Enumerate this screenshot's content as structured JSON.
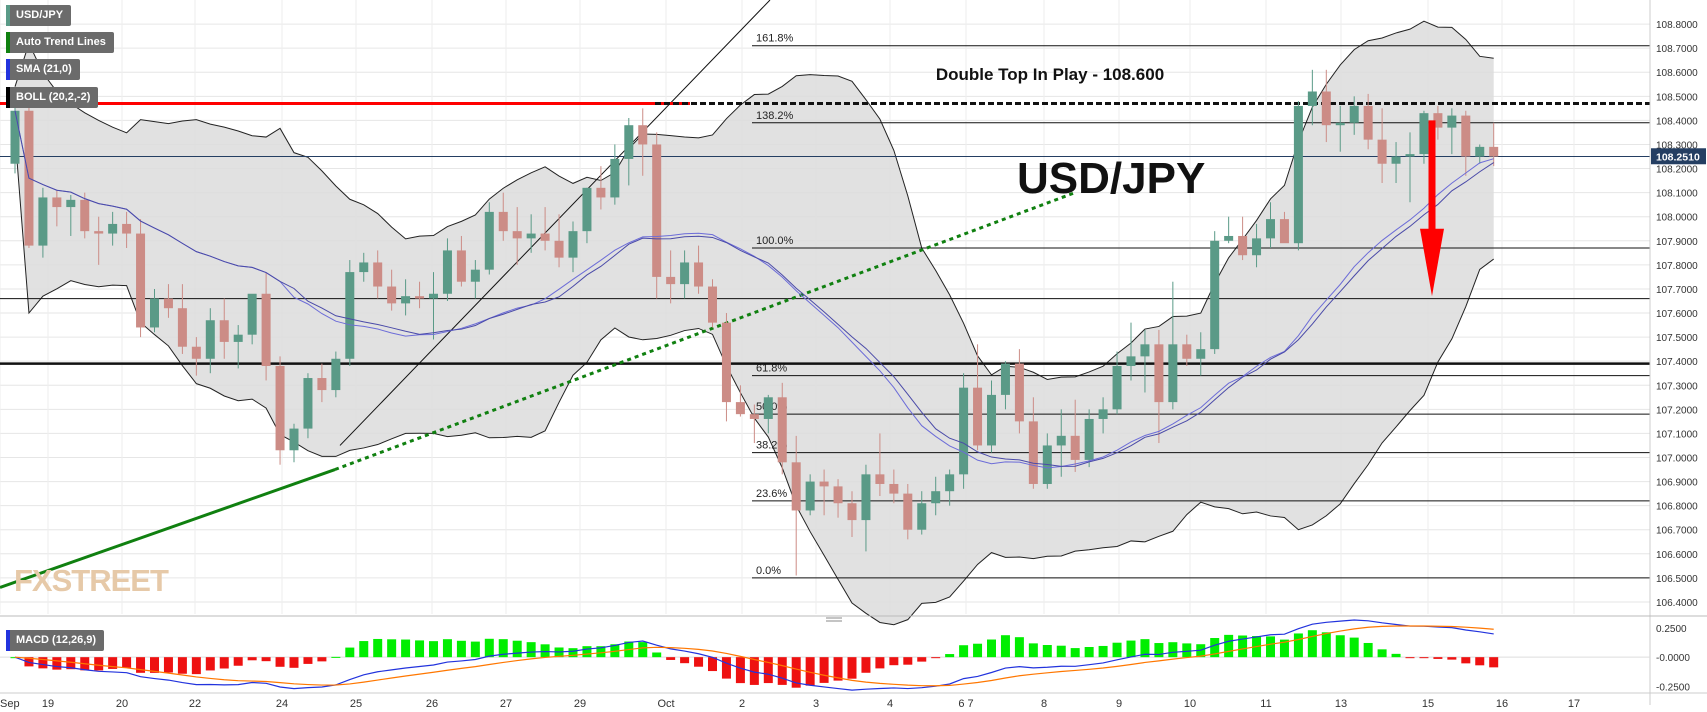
{
  "legend": {
    "symbol": "USD/JPY",
    "trend": "Auto Trend Lines",
    "sma": "SMA (21,0)",
    "boll": "BOLL (20,2,-2)",
    "macd": "MACD (12,26,9)"
  },
  "colors": {
    "up": "#5a9a87",
    "down": "#cc8c86",
    "resistance": "#ff0000",
    "trend_green": "#108010",
    "price_tag": "#243e62",
    "macd_pos": "#00ee00",
    "macd_neg": "#ee1111",
    "macd_line": "#2233dd",
    "signal_line": "#ff7700"
  },
  "watermark": "FXSTREET",
  "annotations": {
    "double_top": "Double Top In Play - 108.600",
    "pair_title": "USD/JPY"
  },
  "fib_labels": [
    "161.8%",
    "138.2%",
    "100.0%",
    "61.8%",
    "50.0%",
    "38.2%",
    "23.6%",
    "0.0%"
  ],
  "chart_data": {
    "type": "candlestick",
    "title": "USD/JPY",
    "ylim": [
      106.35,
      108.9
    ],
    "y_ticks": [
      "108.8000",
      "108.7000",
      "108.6000",
      "108.5000",
      "108.4000",
      "108.3000",
      "108.2000",
      "108.1000",
      "108.0000",
      "107.9000",
      "107.8000",
      "107.7000",
      "107.6000",
      "107.5000",
      "107.4000",
      "107.3000",
      "107.2000",
      "107.1000",
      "107.0000",
      "106.9000",
      "106.8000",
      "106.7000",
      "106.6000",
      "106.5000",
      "106.4000"
    ],
    "current_price": "108.2510",
    "x_labels": [
      "Sep",
      "19",
      "20",
      "22",
      "24",
      "25",
      "26",
      "27",
      "29",
      "Oct",
      "2",
      "3",
      "4",
      "6 7",
      "8",
      "9",
      "10",
      "11",
      "13",
      "15",
      "16",
      "17"
    ],
    "fib_levels": [
      {
        "label": "161.8%",
        "value": 108.71
      },
      {
        "label": "138.2%",
        "value": 108.39
      },
      {
        "label": "100.0%",
        "value": 107.87
      },
      {
        "label": "61.8%",
        "value": 107.34
      },
      {
        "label": "50.0%",
        "value": 107.18
      },
      {
        "label": "38.2%",
        "value": 107.02
      },
      {
        "label": "23.6%",
        "value": 106.82
      },
      {
        "label": "0.0%",
        "value": 106.5
      }
    ],
    "horizontal_levels": [
      107.66,
      107.39
    ],
    "resistance_level": 108.47,
    "candles_ohlc": [
      [
        108.22,
        108.46,
        108.18,
        108.44
      ],
      [
        108.44,
        108.47,
        107.87,
        107.88
      ],
      [
        107.88,
        108.12,
        107.83,
        108.08
      ],
      [
        108.08,
        108.11,
        107.96,
        108.04
      ],
      [
        108.04,
        108.09,
        107.92,
        108.07
      ],
      [
        108.07,
        108.1,
        107.91,
        107.94
      ],
      [
        107.94,
        108.0,
        107.8,
        107.93
      ],
      [
        107.93,
        108.02,
        107.88,
        107.97
      ],
      [
        107.97,
        108.02,
        107.87,
        107.93
      ],
      [
        107.93,
        107.99,
        107.5,
        107.54
      ],
      [
        107.54,
        107.7,
        107.52,
        107.66
      ],
      [
        107.66,
        107.72,
        107.58,
        107.62
      ],
      [
        107.62,
        107.72,
        107.43,
        107.46
      ],
      [
        107.46,
        107.5,
        107.34,
        107.41
      ],
      [
        107.41,
        107.62,
        107.35,
        107.57
      ],
      [
        107.57,
        107.66,
        107.41,
        107.48
      ],
      [
        107.48,
        107.55,
        107.37,
        107.51
      ],
      [
        107.51,
        107.67,
        107.47,
        107.68
      ],
      [
        107.68,
        107.77,
        107.32,
        107.38
      ],
      [
        107.38,
        107.42,
        106.97,
        107.03
      ],
      [
        107.03,
        107.14,
        106.98,
        107.12
      ],
      [
        107.12,
        107.35,
        107.08,
        107.33
      ],
      [
        107.33,
        107.39,
        107.23,
        107.28
      ],
      [
        107.28,
        107.44,
        107.25,
        107.41
      ],
      [
        107.41,
        107.82,
        107.38,
        107.77
      ],
      [
        107.77,
        107.85,
        107.73,
        107.81
      ],
      [
        107.81,
        107.86,
        107.66,
        107.71
      ],
      [
        107.71,
        107.78,
        107.61,
        107.64
      ],
      [
        107.64,
        107.74,
        107.59,
        107.67
      ],
      [
        107.67,
        107.73,
        107.62,
        107.66
      ],
      [
        107.66,
        107.77,
        107.49,
        107.68
      ],
      [
        107.68,
        107.91,
        107.65,
        107.86
      ],
      [
        107.86,
        107.92,
        107.71,
        107.73
      ],
      [
        107.73,
        107.82,
        107.66,
        107.78
      ],
      [
        107.78,
        108.06,
        107.76,
        108.02
      ],
      [
        108.02,
        108.1,
        107.9,
        107.94
      ],
      [
        107.94,
        108.04,
        107.8,
        107.91
      ],
      [
        107.91,
        108.01,
        107.85,
        107.93
      ],
      [
        107.93,
        108.04,
        107.86,
        107.9
      ],
      [
        107.9,
        108.01,
        107.79,
        107.83
      ],
      [
        107.83,
        107.98,
        107.77,
        107.94
      ],
      [
        107.94,
        108.12,
        107.89,
        108.12
      ],
      [
        108.12,
        108.21,
        108.03,
        108.08
      ],
      [
        108.08,
        108.3,
        108.05,
        108.24
      ],
      [
        108.24,
        108.41,
        108.13,
        108.38
      ],
      [
        108.38,
        108.45,
        108.17,
        108.3
      ],
      [
        108.3,
        108.35,
        107.66,
        107.75
      ],
      [
        107.75,
        107.86,
        107.64,
        107.72
      ],
      [
        107.72,
        107.86,
        107.66,
        107.81
      ],
      [
        107.81,
        107.88,
        107.68,
        107.71
      ],
      [
        107.71,
        107.74,
        107.54,
        107.56
      ],
      [
        107.56,
        107.6,
        107.15,
        107.23
      ],
      [
        107.23,
        107.3,
        107.17,
        107.18
      ],
      [
        107.18,
        107.22,
        107.06,
        107.16
      ],
      [
        107.16,
        107.26,
        107.1,
        107.25
      ],
      [
        107.25,
        107.31,
        106.93,
        106.98
      ],
      [
        106.98,
        107.09,
        106.51,
        106.78
      ],
      [
        106.78,
        106.93,
        106.76,
        106.9
      ],
      [
        106.9,
        106.95,
        106.76,
        106.88
      ],
      [
        106.88,
        106.91,
        106.75,
        106.81
      ],
      [
        106.81,
        106.86,
        106.67,
        106.74
      ],
      [
        106.74,
        106.97,
        106.61,
        106.93
      ],
      [
        106.93,
        107.1,
        106.84,
        106.89
      ],
      [
        106.89,
        106.95,
        106.81,
        106.85
      ],
      [
        106.85,
        106.89,
        106.66,
        106.7
      ],
      [
        106.7,
        106.86,
        106.68,
        106.81
      ],
      [
        106.81,
        106.92,
        106.76,
        106.86
      ],
      [
        106.86,
        106.95,
        106.8,
        106.93
      ],
      [
        106.93,
        107.35,
        106.87,
        107.29
      ],
      [
        107.29,
        107.47,
        107.03,
        107.05
      ],
      [
        107.05,
        107.32,
        107.02,
        107.26
      ],
      [
        107.26,
        107.4,
        107.2,
        107.39
      ],
      [
        107.39,
        107.45,
        107.1,
        107.15
      ],
      [
        107.15,
        107.25,
        106.87,
        106.89
      ],
      [
        106.89,
        107.1,
        106.87,
        107.05
      ],
      [
        107.05,
        107.2,
        106.92,
        107.09
      ],
      [
        107.09,
        107.24,
        106.94,
        106.99
      ],
      [
        106.99,
        107.2,
        106.96,
        107.16
      ],
      [
        107.16,
        107.25,
        107.1,
        107.2
      ],
      [
        107.2,
        107.44,
        107.18,
        107.38
      ],
      [
        107.38,
        107.56,
        107.32,
        107.42
      ],
      [
        107.42,
        107.53,
        107.27,
        107.47
      ],
      [
        107.47,
        107.53,
        107.06,
        107.23
      ],
      [
        107.23,
        107.73,
        107.2,
        107.47
      ],
      [
        107.47,
        107.51,
        107.38,
        107.41
      ],
      [
        107.41,
        107.52,
        107.34,
        107.45
      ],
      [
        107.45,
        107.94,
        107.43,
        107.9
      ],
      [
        107.9,
        108.0,
        107.89,
        107.92
      ],
      [
        107.92,
        108.0,
        107.82,
        107.84
      ],
      [
        107.84,
        107.97,
        107.79,
        107.91
      ],
      [
        107.91,
        108.06,
        107.87,
        107.99
      ],
      [
        107.99,
        108.02,
        107.9,
        107.89
      ],
      [
        107.89,
        108.48,
        107.86,
        108.46
      ],
      [
        108.46,
        108.61,
        108.38,
        108.52
      ],
      [
        108.52,
        108.61,
        108.31,
        108.38
      ],
      [
        108.38,
        108.46,
        108.27,
        108.39
      ],
      [
        108.39,
        108.5,
        108.34,
        108.46
      ],
      [
        108.46,
        108.51,
        108.28,
        108.32
      ],
      [
        108.32,
        108.45,
        108.14,
        108.22
      ],
      [
        108.22,
        108.31,
        108.14,
        108.25
      ],
      [
        108.25,
        108.35,
        108.06,
        108.26
      ],
      [
        108.26,
        108.44,
        108.22,
        108.43
      ],
      [
        108.43,
        108.46,
        108.32,
        108.37
      ],
      [
        108.37,
        108.45,
        108.26,
        108.42
      ],
      [
        108.42,
        108.44,
        108.17,
        108.25
      ],
      [
        108.25,
        108.3,
        108.22,
        108.29
      ],
      [
        108.29,
        108.39,
        108.21,
        108.25
      ]
    ],
    "macd_ylim": [
      -0.28,
      0.3
    ],
    "macd_ticks": [
      "0.2500",
      "-0.0000",
      "-0.2500"
    ]
  }
}
